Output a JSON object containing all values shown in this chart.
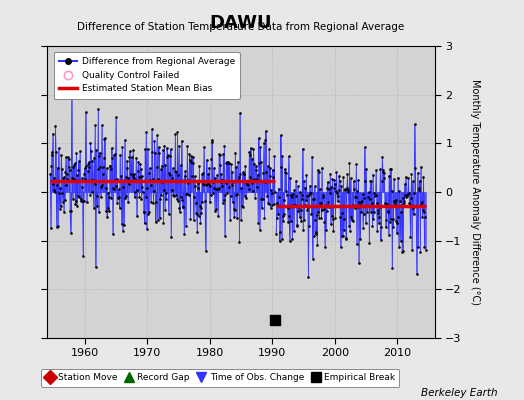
{
  "title": "DAWU",
  "subtitle": "Difference of Station Temperature Data from Regional Average",
  "ylabel": "Monthly Temperature Anomaly Difference (°C)",
  "xlim": [
    1954,
    2016
  ],
  "ylim": [
    -3,
    3
  ],
  "yticks": [
    -3,
    -2,
    -1,
    0,
    1,
    2,
    3
  ],
  "xticks": [
    1960,
    1970,
    1980,
    1990,
    2000,
    2010
  ],
  "background_color": "#e8e8e8",
  "plot_bg_color": "#d3d3d3",
  "segment1_start": 1954.5,
  "segment1_end": 1990.4,
  "segment2_start": 1990.6,
  "segment2_end": 2014.5,
  "bias1": 0.22,
  "bias2": -0.28,
  "empirical_break_x": 1990.5,
  "empirical_break_y": -2.62,
  "line_color": "#3333ff",
  "bias_color": "#dd0000",
  "marker_color": "#000000",
  "fill_alpha": 0.4,
  "seed": 17,
  "n_points_seg1": 432,
  "n_points_seg2": 288,
  "noise_std1": 0.52,
  "noise_std2": 0.45,
  "watermark": "Berkeley Earth",
  "grid_color": "#bbbbbb",
  "qc_fail_color": "#ff99cc"
}
